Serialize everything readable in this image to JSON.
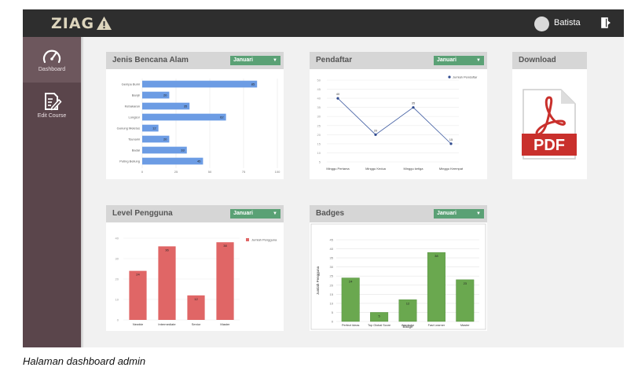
{
  "header": {
    "logo": "ZIAG",
    "user_name": "Batista"
  },
  "sidebar": {
    "items": [
      {
        "label": "Dashboard",
        "icon": "speedometer-icon"
      },
      {
        "label": "Edit Course",
        "icon": "edit-document-icon"
      }
    ]
  },
  "caption": "Halaman dashboard admin",
  "colors": {
    "topbar": "#2e2e2e",
    "sidebar": "#5a454b",
    "select": "#5aa175",
    "bar_blue": "#6c9ce4",
    "bar_red": "#e06666",
    "bar_green": "#6aa84f"
  },
  "cards": {
    "bencana": {
      "title": "Jenis Bencana Alam",
      "month": "Januari"
    },
    "pendaftar": {
      "title": "Pendaftar",
      "month": "Januari"
    },
    "download": {
      "title": "Download",
      "pdf_label": "PDF"
    },
    "level": {
      "title": "Level Pengguna",
      "month": "Januari"
    },
    "badges": {
      "title": "Badges",
      "month": "Januari"
    }
  },
  "chart_data": [
    {
      "type": "bar",
      "orientation": "horizontal",
      "title": "",
      "categories": [
        "Gempa Bumi",
        "Banjir",
        "Kebakaran",
        "Longsor",
        "Gunung Meletus",
        "Tsunami",
        "Badai",
        "Puting Beliung"
      ],
      "values": [
        85,
        20,
        35,
        62,
        12,
        20,
        33,
        45
      ],
      "xlim": [
        0,
        100
      ],
      "xticks": [
        0,
        25,
        50,
        75,
        100
      ],
      "grid": true
    },
    {
      "type": "line",
      "title": "",
      "categories": [
        "Minggu Pertama",
        "Minggu Kedua",
        "Minggu ketiga",
        "Minggu Keempat"
      ],
      "series": [
        {
          "name": "Jumlah Pendaftar",
          "values": [
            40,
            20,
            35,
            15
          ]
        }
      ],
      "ylim": [
        5,
        50
      ],
      "yticks": [
        5,
        10,
        15,
        20,
        25,
        30,
        35,
        40,
        45,
        50
      ],
      "legend": "top-right",
      "grid": true
    },
    {
      "type": "bar",
      "title": "",
      "categories": [
        "Newbie",
        "Intermediate",
        "Senior",
        "Master"
      ],
      "series": [
        {
          "name": "Jumlah Pengguna",
          "values": [
            24,
            36,
            12,
            38
          ]
        }
      ],
      "ylim": [
        0,
        40
      ],
      "yticks": [
        0,
        10,
        20,
        30,
        40
      ],
      "legend": "top-right",
      "grid": true
    },
    {
      "type": "bar",
      "title": "",
      "categories": [
        "Perfect Ideas",
        "Top Global Score",
        "Wardrobe",
        "Fast Learner",
        "Master"
      ],
      "values": [
        24,
        5,
        12,
        38,
        23
      ],
      "ylim": [
        0,
        45
      ],
      "yticks": [
        0,
        5,
        10,
        15,
        20,
        25,
        30,
        35,
        40,
        45
      ],
      "xlabel": "Badge",
      "ylabel": "Jumlah Pengguna",
      "grid": true
    }
  ]
}
